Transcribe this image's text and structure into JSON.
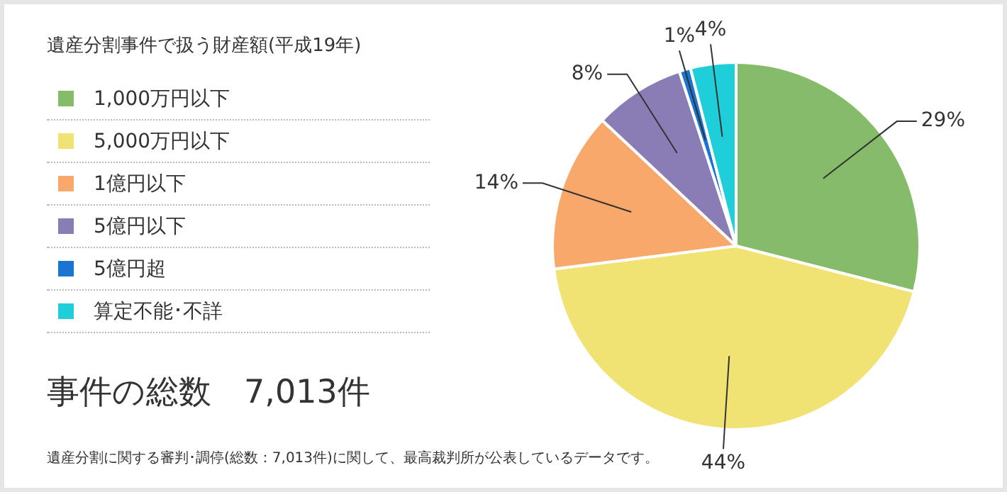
{
  "chart_data": {
    "type": "pie",
    "title": "遺産分割事件で扱う財産額(平成19年)",
    "categories": [
      "1,000万円以下",
      "5,000万円以下",
      "1億円以下",
      "5億円以下",
      "5億円超",
      "算定不能･不詳"
    ],
    "values": [
      29,
      44,
      14,
      8,
      1,
      4
    ],
    "colors": [
      "#86bb6a",
      "#f1e274",
      "#f9a86b",
      "#8a7db5",
      "#1a74d2",
      "#1ecfd9"
    ],
    "value_labels": [
      "29%",
      "44%",
      "14%",
      "8%",
      "1%",
      "4%"
    ],
    "legend": "left",
    "annotations": [
      "事件の総数　7,013件",
      "遺産分割に関する審判･調停(総数：7,013件)に関して、最高裁判所が公表しているデータです。"
    ]
  }
}
